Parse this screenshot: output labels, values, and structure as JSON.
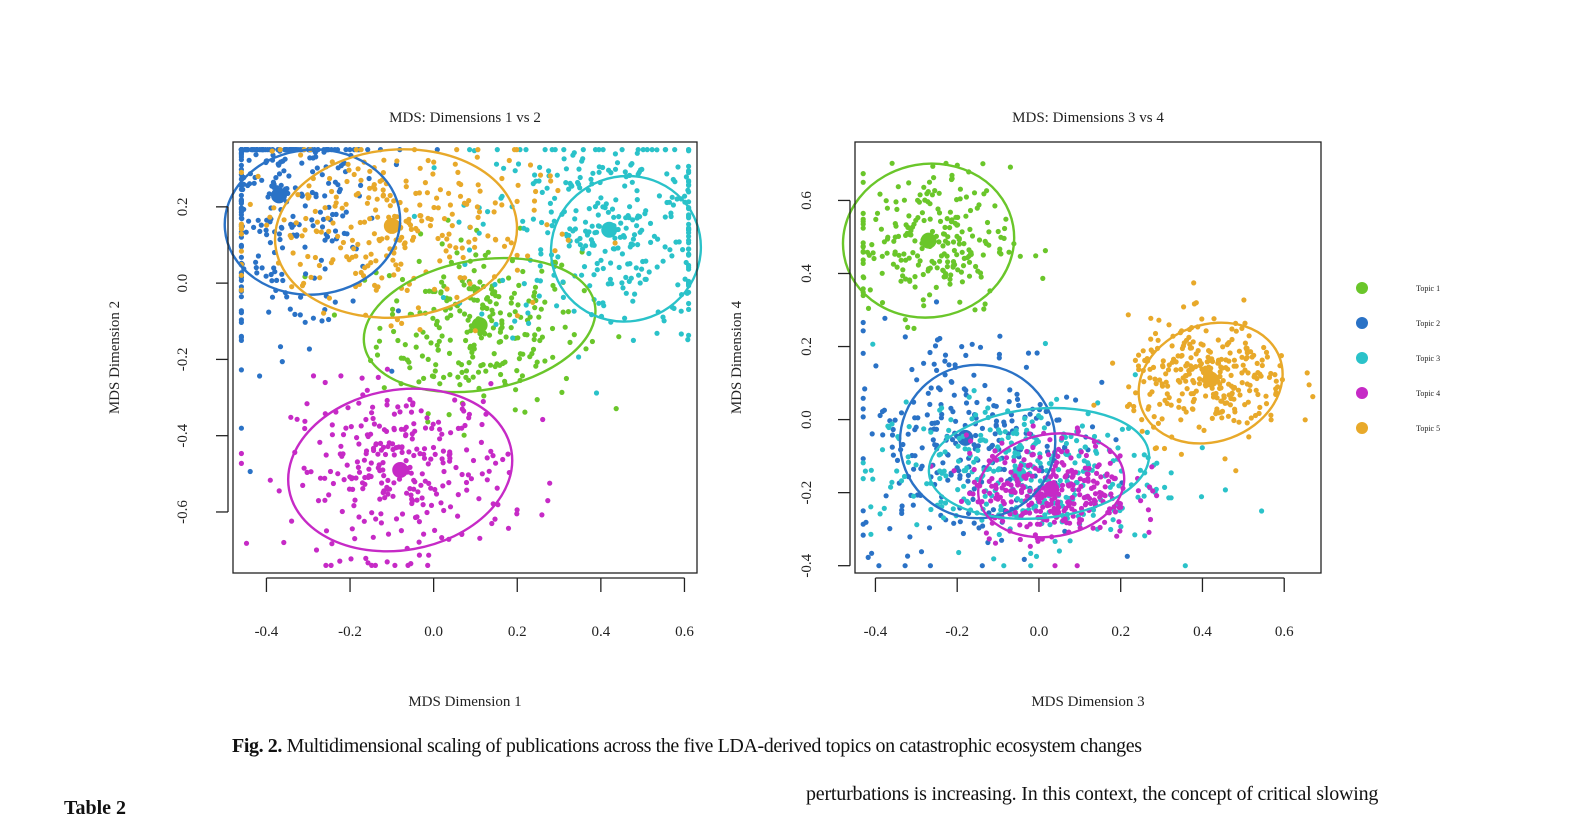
{
  "figure": {
    "caption_label": "Fig. 2.",
    "caption_text": "Multidimensional scaling of publications across the five LDA-derived topics on catastrophic ecosystem changes"
  },
  "legend": [
    {
      "label": "Topic 1",
      "color": "#6ac62a"
    },
    {
      "label": "Topic 2",
      "color": "#2a72c6"
    },
    {
      "label": "Topic 3",
      "color": "#2ac2c9"
    },
    {
      "label": "Topic 4",
      "color": "#c62ac6"
    },
    {
      "label": "Topic 5",
      "color": "#e8a92a"
    }
  ],
  "chart_data": [
    {
      "type": "scatter",
      "title": "MDS: Dimensions 1 vs 2",
      "xlabel": "MDS Dimension 1",
      "ylabel": "MDS Dimension 2",
      "xlim": [
        -0.48,
        0.63
      ],
      "ylim": [
        -0.76,
        0.37
      ],
      "xticks": [
        "-0.4",
        "-0.2",
        "0.0",
        "0.2",
        "0.4",
        "0.6"
      ],
      "yticks": [
        "-0.6",
        "-0.4",
        "-0.2",
        "0.0",
        "0.2"
      ],
      "series": [
        {
          "name": "Topic 1",
          "center": [
            0.11,
            -0.11
          ],
          "spread": [
            0.12,
            0.11
          ],
          "n": 260,
          "ellipse": [
            0.11,
            -0.11,
            0.28,
            0.17,
            -10
          ]
        },
        {
          "name": "Topic 2",
          "center": [
            -0.37,
            0.23
          ],
          "spread": [
            0.12,
            0.18
          ],
          "n": 320,
          "ellipse": [
            -0.29,
            0.16,
            0.21,
            0.19,
            -5
          ]
        },
        {
          "name": "Topic 3",
          "center": [
            0.42,
            0.14
          ],
          "spread": [
            0.16,
            0.15
          ],
          "n": 340,
          "ellipse": [
            0.46,
            0.09,
            0.18,
            0.19,
            -20
          ]
        },
        {
          "name": "Topic 4",
          "center": [
            -0.08,
            -0.49
          ],
          "spread": [
            0.13,
            0.11
          ],
          "n": 300,
          "ellipse": [
            -0.08,
            -0.49,
            0.27,
            0.21,
            -10
          ]
        },
        {
          "name": "Topic 5",
          "center": [
            -0.1,
            0.15
          ],
          "spread": [
            0.18,
            0.11
          ],
          "n": 280,
          "ellipse": [
            -0.09,
            0.13,
            0.29,
            0.22,
            -5
          ]
        }
      ]
    },
    {
      "type": "scatter",
      "title": "MDS: Dimensions 3 vs 4",
      "xlabel": "MDS Dimension 3",
      "ylabel": "MDS Dimension 4",
      "xlim": [
        -0.45,
        0.69
      ],
      "ylim": [
        -0.42,
        0.76
      ],
      "xticks": [
        "-0.4",
        "-0.2",
        "0.0",
        "0.2",
        "0.4",
        "0.6"
      ],
      "yticks": [
        "-0.4",
        "-0.2",
        "0.0",
        "0.2",
        "0.4",
        "0.6"
      ],
      "series": [
        {
          "name": "Topic 1",
          "center": [
            -0.27,
            0.49
          ],
          "spread": [
            0.1,
            0.1
          ],
          "n": 240,
          "ellipse": [
            -0.27,
            0.49,
            0.21,
            0.21,
            -10
          ]
        },
        {
          "name": "Topic 2",
          "center": [
            -0.18,
            -0.05
          ],
          "spread": [
            0.14,
            0.15
          ],
          "n": 260,
          "ellipse": [
            -0.15,
            -0.06,
            0.19,
            0.21,
            0
          ]
        },
        {
          "name": "Topic 3",
          "center": [
            -0.05,
            -0.15
          ],
          "spread": [
            0.18,
            0.1
          ],
          "n": 320,
          "ellipse": [
            0.0,
            -0.12,
            0.27,
            0.15,
            -5
          ]
        },
        {
          "name": "Topic 4",
          "center": [
            0.03,
            -0.19
          ],
          "spread": [
            0.1,
            0.07
          ],
          "n": 300,
          "ellipse": [
            0.03,
            -0.18,
            0.18,
            0.14,
            -10
          ]
        },
        {
          "name": "Topic 5",
          "center": [
            0.42,
            0.11
          ],
          "spread": [
            0.1,
            0.08
          ],
          "n": 300,
          "ellipse": [
            0.42,
            0.1,
            0.18,
            0.16,
            -20
          ]
        }
      ]
    }
  ],
  "text": {
    "body_line": "perturbations is increasing. In this context, the concept of critical slowing",
    "table_label": "Table 2"
  }
}
